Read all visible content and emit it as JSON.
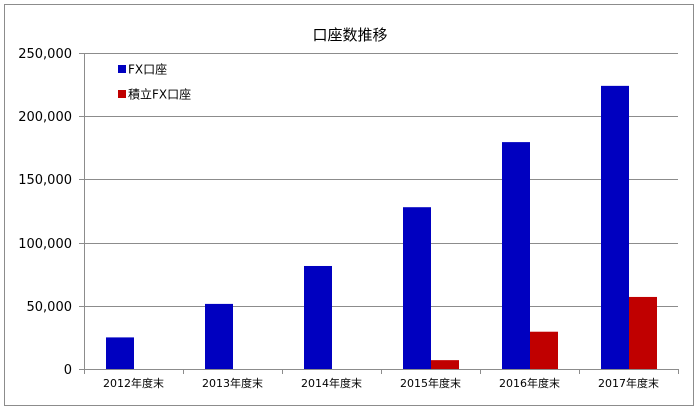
{
  "chart_data": {
    "type": "bar",
    "title": "口座数推移",
    "xlabel": "",
    "ylabel": "",
    "categories": [
      "2012年度末",
      "2013年度末",
      "2014年度末",
      "2015年度末",
      "2016年度末",
      "2017年度末"
    ],
    "series": [
      {
        "name": "FX口座",
        "color": "#0000c0",
        "values": [
          25000,
          51500,
          81500,
          128000,
          179500,
          224000
        ]
      },
      {
        "name": "積立FX口座",
        "color": "#c00000",
        "values": [
          0,
          0,
          0,
          7000,
          29500,
          57000
        ]
      }
    ],
    "ylim": [
      0,
      250000
    ],
    "yticks": [
      0,
      50000,
      100000,
      150000,
      200000,
      250000
    ],
    "ytick_labels": [
      "0",
      "50,000",
      "100,000",
      "150,000",
      "200,000",
      "250,000"
    ],
    "grid": true,
    "legend_position": "top-left"
  }
}
